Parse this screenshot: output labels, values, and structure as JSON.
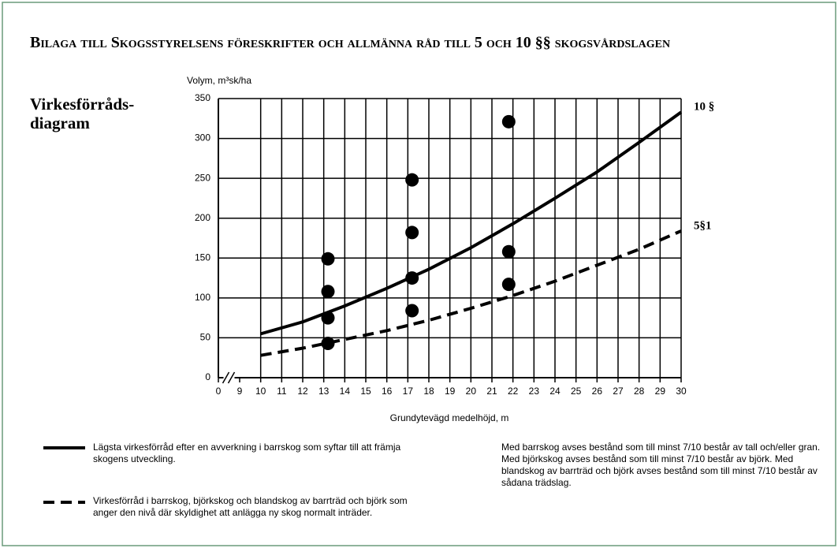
{
  "chart_data": {
    "type": "line",
    "title": "Bilaga till Skogsstyrelsens föreskrifter och allmänna råd till 5 och 10 §§ skogsvårdslagen",
    "heading": "Virkesförråds-diagram",
    "ylabel": "Volym, m³sk/ha",
    "xlabel": "Grundytevägd medelhöjd, m",
    "xlim": [
      0,
      30
    ],
    "ylim": [
      0,
      350
    ],
    "xticks": [
      0,
      9,
      10,
      11,
      12,
      13,
      14,
      15,
      16,
      17,
      18,
      19,
      20,
      21,
      22,
      23,
      24,
      25,
      26,
      27,
      28,
      29,
      30
    ],
    "yticks": [
      0,
      50,
      100,
      150,
      200,
      250,
      300,
      350
    ],
    "axis_break": true,
    "grid": true,
    "series": [
      {
        "name": "Lägsta virkesförråd efter en avverkning i barrskog som syftar till att främja skogens utveckling.",
        "label": "10 §",
        "color": "#000000",
        "dash": false,
        "x": [
          10,
          12,
          14,
          16,
          18,
          20,
          22,
          24,
          26,
          28,
          30
        ],
        "values": [
          55,
          70,
          90,
          112,
          136,
          163,
          193,
          225,
          258,
          295,
          333
        ]
      },
      {
        "name": "Virkesförråd i barrskog, björkskog och blandskog av barrträd och björk som anger den nivå där skyldighet att anlägga ny skog normalt inträder.",
        "label": "5§1",
        "color": "#000000",
        "dash": true,
        "x": [
          10,
          12,
          14,
          16,
          18,
          20,
          22,
          24,
          26,
          28,
          30
        ],
        "values": [
          28,
          37,
          48,
          59,
          72,
          87,
          103,
          121,
          141,
          161,
          184
        ]
      }
    ],
    "points": {
      "color": "#000000",
      "x": [
        13.2,
        13.2,
        13.2,
        13.2,
        17.2,
        17.2,
        17.2,
        17.2,
        21.8,
        21.8,
        21.8
      ],
      "values": [
        149,
        108,
        75,
        43,
        248,
        182,
        125,
        84,
        321,
        158,
        117
      ]
    },
    "note": "Med barrskog avses bestånd som till minst 7/10 består av tall och/eller gran. Med björkskog avses bestånd som till minst 7/10 består av björk. Med blandskog av barrträd och björk avses bestånd som till minst 7/10 består av sådana trädslag."
  }
}
